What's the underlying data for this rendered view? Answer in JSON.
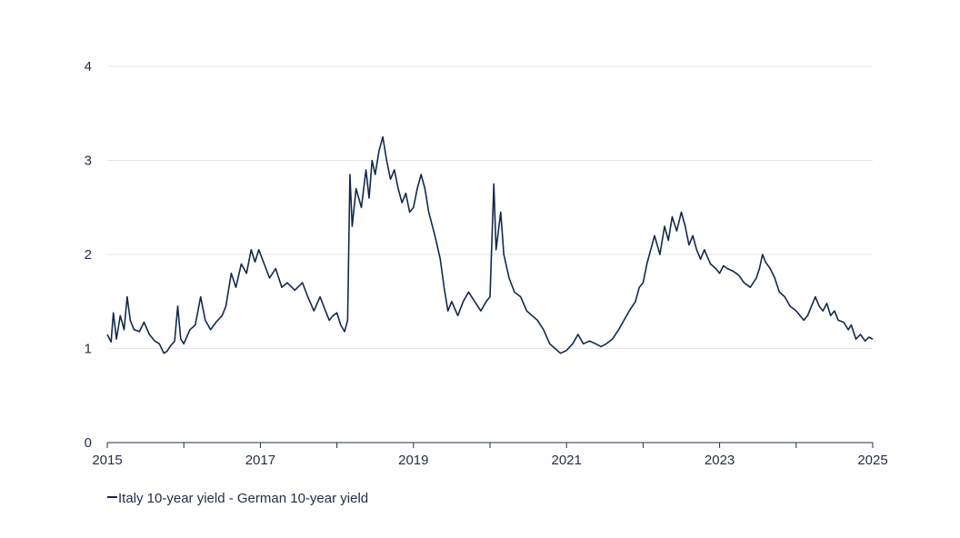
{
  "chart_data": {
    "type": "line",
    "title": "",
    "xlabel": "",
    "ylabel": "",
    "xlim": [
      2015,
      2025
    ],
    "ylim": [
      0,
      4
    ],
    "x_ticks": [
      "2015",
      "2017",
      "2019",
      "2021",
      "2023",
      "2025"
    ],
    "x_minor_ticks": [
      2016,
      2018,
      2020,
      2022,
      2024
    ],
    "y_ticks": [
      "0",
      "1",
      "2",
      "3",
      "4"
    ],
    "grid": "horizontal",
    "legend_position": "bottom-left",
    "line_color": "#13294b",
    "series": [
      {
        "name": "Italy 10-year yield  -  German 10-year yield",
        "points": [
          [
            2015.0,
            1.15
          ],
          [
            2015.05,
            1.07
          ],
          [
            2015.08,
            1.38
          ],
          [
            2015.12,
            1.1
          ],
          [
            2015.17,
            1.35
          ],
          [
            2015.22,
            1.2
          ],
          [
            2015.26,
            1.55
          ],
          [
            2015.3,
            1.3
          ],
          [
            2015.35,
            1.2
          ],
          [
            2015.42,
            1.18
          ],
          [
            2015.48,
            1.28
          ],
          [
            2015.55,
            1.15
          ],
          [
            2015.62,
            1.08
          ],
          [
            2015.68,
            1.05
          ],
          [
            2015.74,
            0.95
          ],
          [
            2015.78,
            0.97
          ],
          [
            2015.82,
            1.02
          ],
          [
            2015.88,
            1.08
          ],
          [
            2015.92,
            1.45
          ],
          [
            2015.96,
            1.1
          ],
          [
            2016.0,
            1.05
          ],
          [
            2016.08,
            1.2
          ],
          [
            2016.15,
            1.25
          ],
          [
            2016.22,
            1.55
          ],
          [
            2016.28,
            1.3
          ],
          [
            2016.35,
            1.2
          ],
          [
            2016.42,
            1.28
          ],
          [
            2016.5,
            1.35
          ],
          [
            2016.55,
            1.45
          ],
          [
            2016.62,
            1.8
          ],
          [
            2016.68,
            1.65
          ],
          [
            2016.75,
            1.9
          ],
          [
            2016.82,
            1.8
          ],
          [
            2016.88,
            2.05
          ],
          [
            2016.93,
            1.92
          ],
          [
            2016.98,
            2.05
          ],
          [
            2017.05,
            1.9
          ],
          [
            2017.12,
            1.75
          ],
          [
            2017.2,
            1.85
          ],
          [
            2017.28,
            1.65
          ],
          [
            2017.35,
            1.7
          ],
          [
            2017.45,
            1.62
          ],
          [
            2017.55,
            1.7
          ],
          [
            2017.62,
            1.55
          ],
          [
            2017.7,
            1.4
          ],
          [
            2017.78,
            1.55
          ],
          [
            2017.85,
            1.4
          ],
          [
            2017.9,
            1.3
          ],
          [
            2017.95,
            1.35
          ],
          [
            2018.0,
            1.38
          ],
          [
            2018.05,
            1.25
          ],
          [
            2018.1,
            1.18
          ],
          [
            2018.14,
            1.3
          ],
          [
            2018.17,
            2.85
          ],
          [
            2018.2,
            2.3
          ],
          [
            2018.25,
            2.7
          ],
          [
            2018.32,
            2.5
          ],
          [
            2018.38,
            2.9
          ],
          [
            2018.42,
            2.6
          ],
          [
            2018.46,
            3.0
          ],
          [
            2018.5,
            2.85
          ],
          [
            2018.55,
            3.1
          ],
          [
            2018.6,
            3.25
          ],
          [
            2018.65,
            3.0
          ],
          [
            2018.7,
            2.8
          ],
          [
            2018.75,
            2.9
          ],
          [
            2018.8,
            2.7
          ],
          [
            2018.85,
            2.55
          ],
          [
            2018.9,
            2.65
          ],
          [
            2018.95,
            2.45
          ],
          [
            2019.0,
            2.5
          ],
          [
            2019.05,
            2.7
          ],
          [
            2019.1,
            2.85
          ],
          [
            2019.15,
            2.7
          ],
          [
            2019.2,
            2.45
          ],
          [
            2019.28,
            2.2
          ],
          [
            2019.35,
            1.95
          ],
          [
            2019.4,
            1.65
          ],
          [
            2019.45,
            1.4
          ],
          [
            2019.5,
            1.5
          ],
          [
            2019.58,
            1.35
          ],
          [
            2019.65,
            1.5
          ],
          [
            2019.72,
            1.6
          ],
          [
            2019.8,
            1.5
          ],
          [
            2019.88,
            1.4
          ],
          [
            2019.95,
            1.5
          ],
          [
            2020.0,
            1.55
          ],
          [
            2020.05,
            2.75
          ],
          [
            2020.08,
            2.05
          ],
          [
            2020.14,
            2.45
          ],
          [
            2020.18,
            2.0
          ],
          [
            2020.25,
            1.75
          ],
          [
            2020.32,
            1.6
          ],
          [
            2020.4,
            1.55
          ],
          [
            2020.48,
            1.4
          ],
          [
            2020.55,
            1.35
          ],
          [
            2020.62,
            1.3
          ],
          [
            2020.7,
            1.2
          ],
          [
            2020.78,
            1.05
          ],
          [
            2020.85,
            1.0
          ],
          [
            2020.92,
            0.95
          ],
          [
            2021.0,
            0.98
          ],
          [
            2021.08,
            1.05
          ],
          [
            2021.15,
            1.15
          ],
          [
            2021.22,
            1.05
          ],
          [
            2021.3,
            1.08
          ],
          [
            2021.38,
            1.05
          ],
          [
            2021.45,
            1.02
          ],
          [
            2021.52,
            1.05
          ],
          [
            2021.6,
            1.1
          ],
          [
            2021.68,
            1.2
          ],
          [
            2021.75,
            1.3
          ],
          [
            2021.82,
            1.4
          ],
          [
            2021.9,
            1.5
          ],
          [
            2021.95,
            1.65
          ],
          [
            2022.0,
            1.7
          ],
          [
            2022.05,
            1.9
          ],
          [
            2022.1,
            2.05
          ],
          [
            2022.15,
            2.2
          ],
          [
            2022.22,
            2.0
          ],
          [
            2022.28,
            2.3
          ],
          [
            2022.33,
            2.15
          ],
          [
            2022.38,
            2.4
          ],
          [
            2022.44,
            2.25
          ],
          [
            2022.5,
            2.45
          ],
          [
            2022.55,
            2.3
          ],
          [
            2022.6,
            2.1
          ],
          [
            2022.65,
            2.2
          ],
          [
            2022.7,
            2.05
          ],
          [
            2022.75,
            1.95
          ],
          [
            2022.8,
            2.05
          ],
          [
            2022.88,
            1.9
          ],
          [
            2022.95,
            1.85
          ],
          [
            2023.0,
            1.8
          ],
          [
            2023.05,
            1.88
          ],
          [
            2023.1,
            1.85
          ],
          [
            2023.18,
            1.82
          ],
          [
            2023.25,
            1.78
          ],
          [
            2023.32,
            1.7
          ],
          [
            2023.4,
            1.65
          ],
          [
            2023.48,
            1.75
          ],
          [
            2023.52,
            1.85
          ],
          [
            2023.56,
            2.0
          ],
          [
            2023.6,
            1.92
          ],
          [
            2023.66,
            1.85
          ],
          [
            2023.72,
            1.75
          ],
          [
            2023.78,
            1.6
          ],
          [
            2023.85,
            1.55
          ],
          [
            2023.92,
            1.45
          ],
          [
            2024.0,
            1.4
          ],
          [
            2024.05,
            1.35
          ],
          [
            2024.1,
            1.3
          ],
          [
            2024.15,
            1.35
          ],
          [
            2024.2,
            1.45
          ],
          [
            2024.25,
            1.55
          ],
          [
            2024.3,
            1.45
          ],
          [
            2024.35,
            1.4
          ],
          [
            2024.4,
            1.48
          ],
          [
            2024.45,
            1.35
          ],
          [
            2024.5,
            1.4
          ],
          [
            2024.55,
            1.3
          ],
          [
            2024.62,
            1.28
          ],
          [
            2024.68,
            1.2
          ],
          [
            2024.72,
            1.25
          ],
          [
            2024.78,
            1.1
          ],
          [
            2024.84,
            1.15
          ],
          [
            2024.9,
            1.08
          ],
          [
            2024.95,
            1.12
          ],
          [
            2025.0,
            1.1
          ]
        ]
      }
    ]
  },
  "legend": {
    "label": "Italy 10-year yield  -  German 10-year yield"
  }
}
